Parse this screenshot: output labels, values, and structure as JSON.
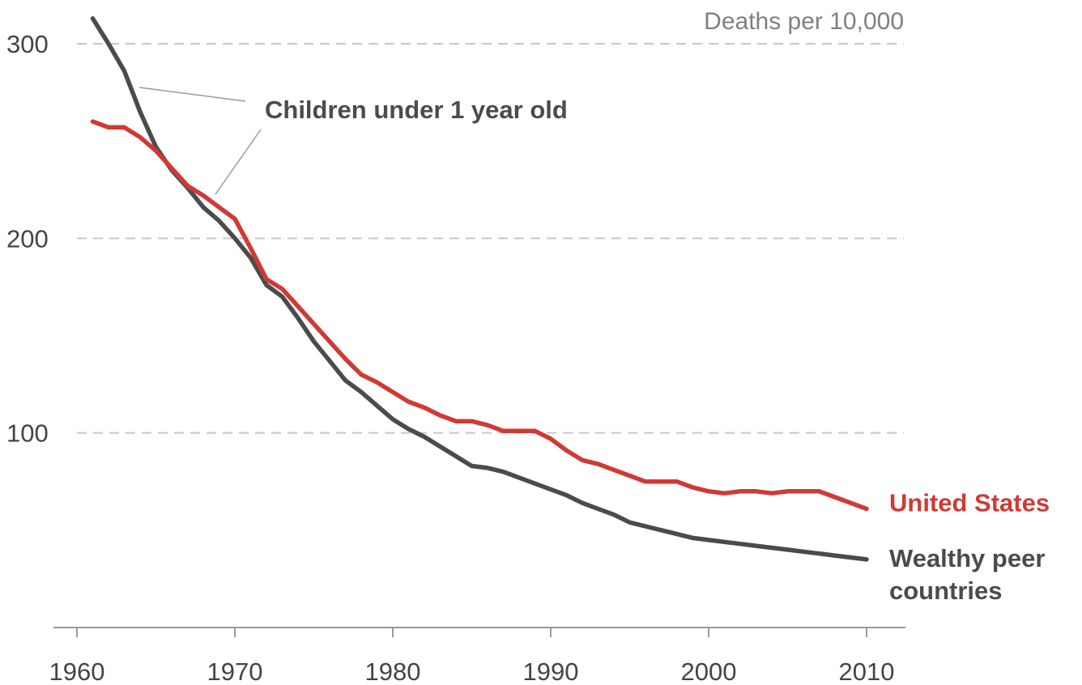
{
  "chart_data": {
    "type": "line",
    "unit_label": "Deaths per 10,000",
    "annotation": "Children under 1 year old",
    "xlim": [
      1960,
      2012
    ],
    "ylim": [
      0,
      320
    ],
    "x_ticks": [
      1960,
      1970,
      1980,
      1990,
      2000,
      2010
    ],
    "y_ticks": [
      100,
      200,
      300
    ],
    "grid": "horizontal dashed",
    "colors": {
      "us": "#d03a35",
      "peers": "#4b4b4b"
    },
    "series": [
      {
        "id": "us",
        "name": "United States",
        "color": "#d03a35",
        "points": [
          [
            1961,
            260
          ],
          [
            1962,
            257
          ],
          [
            1963,
            257
          ],
          [
            1964,
            252
          ],
          [
            1965,
            245
          ],
          [
            1966,
            236
          ],
          [
            1967,
            227
          ],
          [
            1968,
            222
          ],
          [
            1969,
            216
          ],
          [
            1970,
            210
          ],
          [
            1971,
            195
          ],
          [
            1972,
            179
          ],
          [
            1973,
            174
          ],
          [
            1974,
            165
          ],
          [
            1975,
            156
          ],
          [
            1976,
            147
          ],
          [
            1977,
            138
          ],
          [
            1978,
            130
          ],
          [
            1979,
            126
          ],
          [
            1980,
            121
          ],
          [
            1981,
            116
          ],
          [
            1982,
            113
          ],
          [
            1983,
            109
          ],
          [
            1984,
            106
          ],
          [
            1985,
            106
          ],
          [
            1986,
            104
          ],
          [
            1987,
            101
          ],
          [
            1988,
            101
          ],
          [
            1989,
            101
          ],
          [
            1990,
            97
          ],
          [
            1991,
            91
          ],
          [
            1992,
            86
          ],
          [
            1993,
            84
          ],
          [
            1994,
            81
          ],
          [
            1995,
            78
          ],
          [
            1996,
            75
          ],
          [
            1997,
            75
          ],
          [
            1998,
            75
          ],
          [
            1999,
            72
          ],
          [
            2000,
            70
          ],
          [
            2001,
            69
          ],
          [
            2002,
            70
          ],
          [
            2003,
            70
          ],
          [
            2004,
            69
          ],
          [
            2005,
            70
          ],
          [
            2006,
            70
          ],
          [
            2007,
            70
          ],
          [
            2008,
            67
          ],
          [
            2009,
            64
          ],
          [
            2010,
            61
          ]
        ]
      },
      {
        "id": "peers",
        "name": "Wealthy peer countries",
        "label_lines": [
          "Wealthy peer",
          "countries"
        ],
        "color": "#4b4b4b",
        "points": [
          [
            1961,
            313
          ],
          [
            1962,
            300
          ],
          [
            1963,
            286
          ],
          [
            1964,
            265
          ],
          [
            1965,
            247
          ],
          [
            1966,
            235
          ],
          [
            1967,
            226
          ],
          [
            1968,
            216
          ],
          [
            1969,
            209
          ],
          [
            1970,
            200
          ],
          [
            1971,
            190
          ],
          [
            1972,
            176
          ],
          [
            1973,
            170
          ],
          [
            1974,
            159
          ],
          [
            1975,
            147
          ],
          [
            1976,
            137
          ],
          [
            1977,
            127
          ],
          [
            1978,
            121
          ],
          [
            1979,
            114
          ],
          [
            1980,
            107
          ],
          [
            1981,
            102
          ],
          [
            1982,
            98
          ],
          [
            1983,
            93
          ],
          [
            1984,
            88
          ],
          [
            1985,
            83
          ],
          [
            1986,
            82
          ],
          [
            1987,
            80
          ],
          [
            1988,
            77
          ],
          [
            1989,
            74
          ],
          [
            1990,
            71
          ],
          [
            1991,
            68
          ],
          [
            1992,
            64
          ],
          [
            1993,
            61
          ],
          [
            1994,
            58
          ],
          [
            1995,
            54
          ],
          [
            1996,
            52
          ],
          [
            1997,
            50
          ],
          [
            1998,
            48
          ],
          [
            1999,
            46
          ],
          [
            2000,
            45
          ],
          [
            2001,
            44
          ],
          [
            2002,
            43
          ],
          [
            2003,
            42
          ],
          [
            2004,
            41
          ],
          [
            2005,
            40
          ],
          [
            2006,
            39
          ],
          [
            2007,
            38
          ],
          [
            2008,
            37
          ],
          [
            2009,
            36
          ],
          [
            2010,
            35
          ]
        ]
      }
    ]
  }
}
